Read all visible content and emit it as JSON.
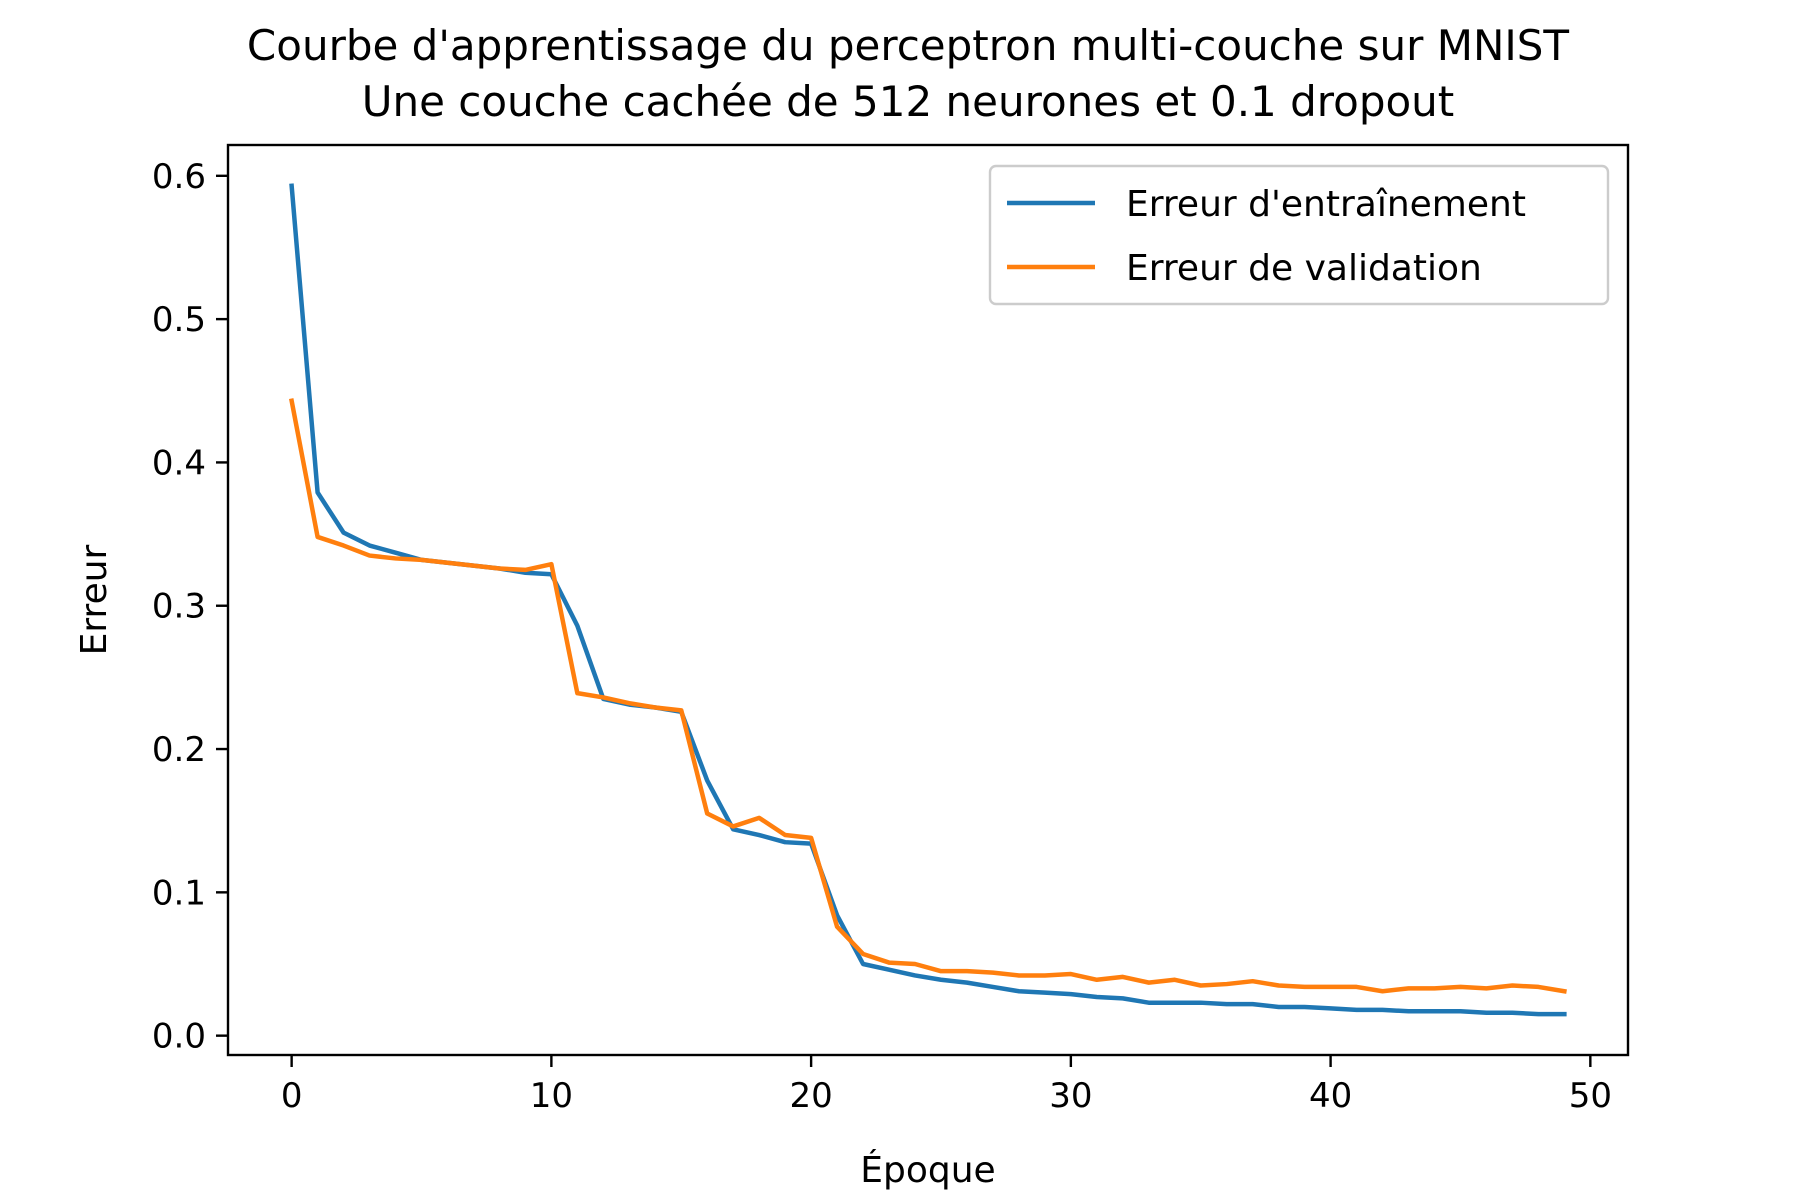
{
  "chart_data": {
    "type": "line",
    "title": "Courbe d'apprentissage du perceptron multi-couche sur MNIST",
    "subtitle": "Une couche cachée de 512 neurones et 0.1 dropout",
    "xlabel": "Époque",
    "ylabel": "Erreur",
    "xlim": [
      -2.45,
      51.45
    ],
    "ylim": [
      -0.0135,
      0.6215
    ],
    "xticks": [
      0,
      10,
      20,
      30,
      40,
      50
    ],
    "yticks": [
      0.0,
      0.1,
      0.2,
      0.3,
      0.4,
      0.5,
      0.6
    ],
    "ytick_format": "0.1f",
    "grid": false,
    "legend_position": "top-right",
    "x": [
      0,
      1,
      2,
      3,
      4,
      5,
      6,
      7,
      8,
      9,
      10,
      11,
      12,
      13,
      14,
      15,
      16,
      17,
      18,
      19,
      20,
      21,
      22,
      23,
      24,
      25,
      26,
      27,
      28,
      29,
      30,
      31,
      32,
      33,
      34,
      35,
      36,
      37,
      38,
      39,
      40,
      41,
      42,
      43,
      44,
      45,
      46,
      47,
      48,
      49
    ],
    "series": [
      {
        "name": "Erreur d'entraînement",
        "color": "#1f77b4",
        "values": [
          0.593,
          0.379,
          0.351,
          0.342,
          0.337,
          0.332,
          0.33,
          0.328,
          0.326,
          0.323,
          0.322,
          0.286,
          0.235,
          0.231,
          0.229,
          0.226,
          0.178,
          0.144,
          0.14,
          0.135,
          0.134,
          0.084,
          0.05,
          0.046,
          0.042,
          0.039,
          0.037,
          0.034,
          0.031,
          0.03,
          0.029,
          0.027,
          0.026,
          0.023,
          0.023,
          0.023,
          0.022,
          0.022,
          0.02,
          0.02,
          0.019,
          0.018,
          0.018,
          0.017,
          0.017,
          0.017,
          0.016,
          0.016,
          0.015,
          0.015
        ]
      },
      {
        "name": "Erreur de validation",
        "color": "#ff7f0e",
        "values": [
          0.443,
          0.348,
          0.342,
          0.335,
          0.333,
          0.332,
          0.33,
          0.328,
          0.326,
          0.325,
          0.329,
          0.239,
          0.236,
          0.232,
          0.229,
          0.227,
          0.155,
          0.146,
          0.152,
          0.14,
          0.138,
          0.076,
          0.057,
          0.051,
          0.05,
          0.045,
          0.045,
          0.044,
          0.042,
          0.042,
          0.043,
          0.039,
          0.041,
          0.037,
          0.039,
          0.035,
          0.036,
          0.038,
          0.035,
          0.034,
          0.034,
          0.034,
          0.031,
          0.033,
          0.033,
          0.034,
          0.033,
          0.035,
          0.034,
          0.031
        ]
      }
    ]
  }
}
